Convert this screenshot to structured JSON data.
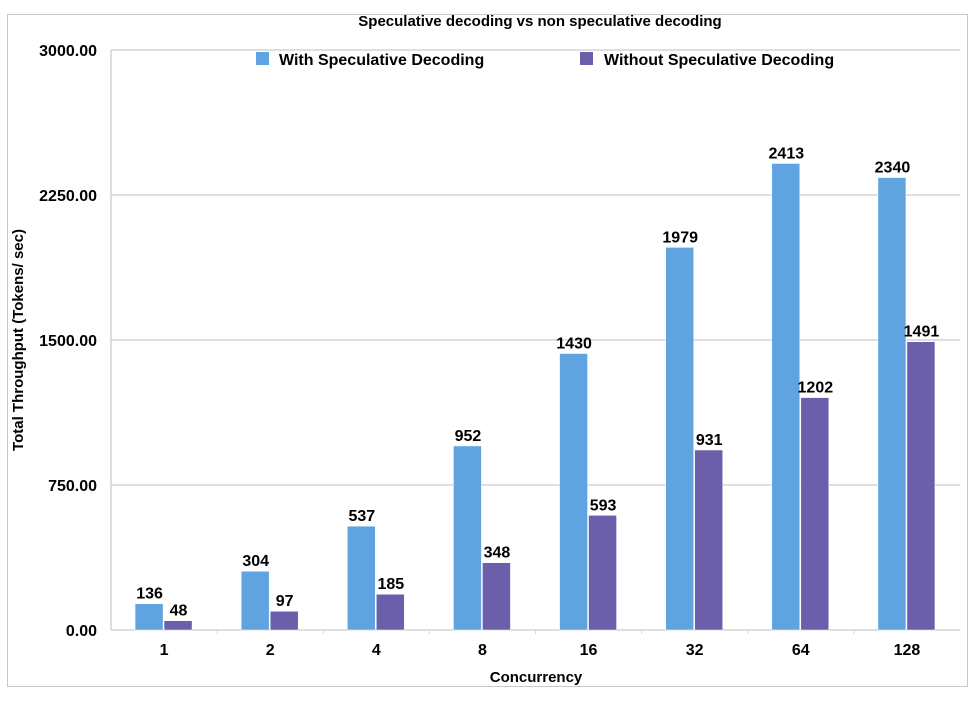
{
  "chart_data": {
    "type": "bar",
    "title": "Speculative decoding vs non speculative decoding",
    "xlabel": "Concurrency",
    "ylabel": "Total Throughput (Tokens/ sec)",
    "categories": [
      "1",
      "2",
      "4",
      "8",
      "16",
      "32",
      "64",
      "128"
    ],
    "series": [
      {
        "name": "With Speculative Decoding",
        "color": "#5fa4e0",
        "values": [
          136,
          304,
          537,
          952,
          1430,
          1979,
          2413,
          2340
        ]
      },
      {
        "name": "Without Speculative Decoding",
        "color": "#6b5fab",
        "values": [
          48,
          97,
          185,
          348,
          593,
          931,
          1202,
          1491
        ]
      }
    ],
    "ylim": [
      0,
      3000
    ],
    "yticks": [
      0,
      750,
      1500,
      2250,
      3000
    ],
    "ytick_labels": [
      "0.00",
      "750.00",
      "1500.00",
      "2250.00",
      "3000.00"
    ],
    "grid": true,
    "legend_position": "top-center"
  }
}
